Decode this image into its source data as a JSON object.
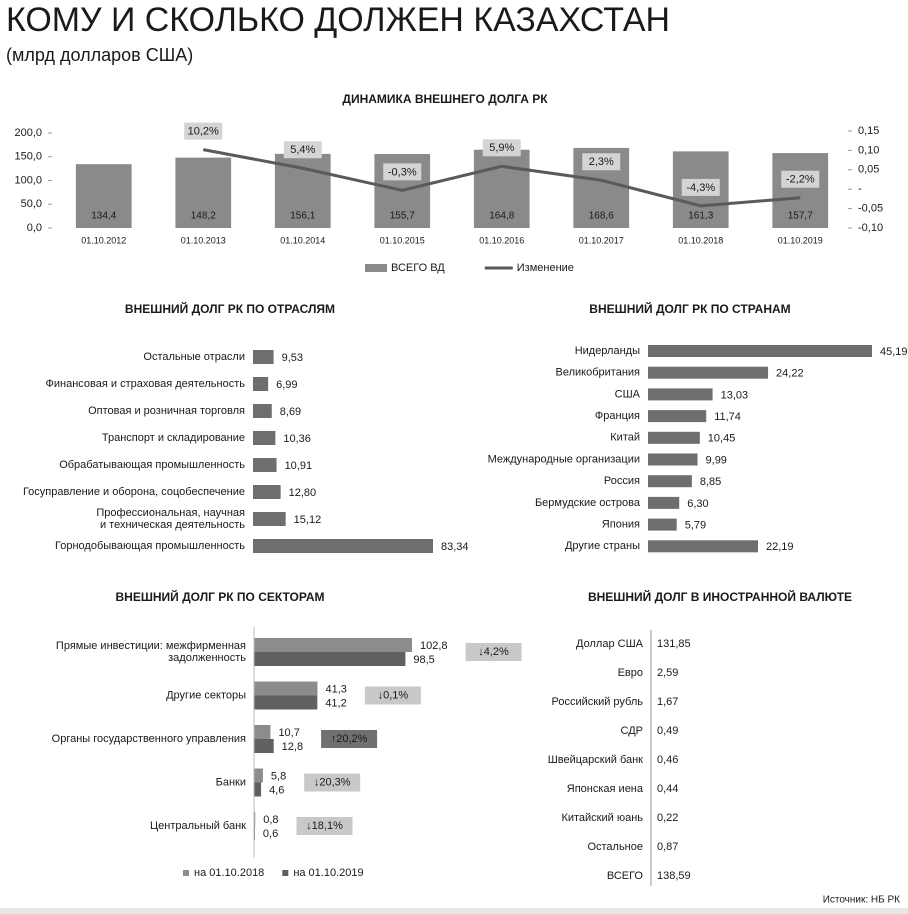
{
  "header": {
    "title": "КОМУ И СКОЛЬКО ДОЛЖЕН КАЗАХСТАН",
    "subtitle": "(млрд долларов США)"
  },
  "source": "Источник: НБ РК",
  "chart_data": [
    {
      "type": "bar",
      "title": "ДИНАМИКА ВНЕШНЕГО ДОЛГА РК",
      "categories": [
        "01.10.2012",
        "01.10.2013",
        "01.10.2014",
        "01.10.2015",
        "01.10.2016",
        "01.10.2017",
        "01.10.2018",
        "01.10.2019"
      ],
      "series": [
        {
          "name": "ВСЕГО ВД",
          "color": "#8a8a8a",
          "values": [
            134.4,
            148.2,
            156.1,
            155.7,
            164.8,
            168.6,
            161.3,
            157.7
          ],
          "value_labels": [
            "134,4",
            "148,2",
            "156,1",
            "155,7",
            "164,8",
            "168,6",
            "161,3",
            "157,7"
          ]
        },
        {
          "name": "Изменение",
          "type": "line",
          "axis": "y2",
          "color": "#5a5a5a",
          "values": [
            null,
            0.102,
            0.054,
            -0.003,
            0.059,
            0.023,
            -0.043,
            -0.022
          ],
          "value_labels": [
            null,
            "10,2%",
            "5,4%",
            "-0,3%",
            "5,9%",
            "2,3%",
            "-4,3%",
            "-2,2%"
          ]
        }
      ],
      "ylim": [
        0,
        200
      ],
      "yticks": [
        {
          "value": 0,
          "label": "0,0"
        },
        {
          "value": 50,
          "label": "50,0"
        },
        {
          "value": 100,
          "label": "100,0"
        },
        {
          "value": 150,
          "label": "150,0"
        },
        {
          "value": 200,
          "label": "200,0"
        }
      ],
      "y2lim": [
        -0.1,
        0.15
      ],
      "y2ticks": [
        {
          "value": -0.1,
          "label": "-0,10"
        },
        {
          "value": -0.05,
          "label": "-0,05"
        },
        {
          "value": 0,
          "label": "-"
        },
        {
          "value": 0.05,
          "label": "0,05"
        },
        {
          "value": 0.1,
          "label": "0,10"
        },
        {
          "value": 0.15,
          "label": "0,15"
        }
      ],
      "legend": "bottom"
    },
    {
      "type": "hbar",
      "title": "ВНЕШНИЙ ДОЛГ РК ПО ОТРАСЛЯМ",
      "color": "#6e6e6e",
      "categories": [
        "Остальные отрасли",
        "Финансовая и страховая деятельность",
        "Оптовая и розничная торговля",
        "Транспорт и складирование",
        "Обрабатывающая промышленность",
        "Госуправление и оборона, соцобеспечение",
        "Профессиональная, научная\nи техническая деятельность",
        "Горнодобывающая промышленность"
      ],
      "values": [
        9.53,
        6.99,
        8.69,
        10.36,
        10.91,
        12.8,
        15.12,
        83.34
      ],
      "value_labels": [
        "9,53",
        "6,99",
        "8,69",
        "10,36",
        "10,91",
        "12,80",
        "15,12",
        "83,34"
      ]
    },
    {
      "type": "hbar",
      "title": "ВНЕШНИЙ ДОЛГ РК ПО СТРАНАМ",
      "color": "#6e6e6e",
      "categories": [
        "Нидерланды",
        "Великобритания",
        "США",
        "Франция",
        "Китай",
        "Международные организации",
        "Россия",
        "Бермудские острова",
        "Япония",
        "Другие страны"
      ],
      "values": [
        45.19,
        24.22,
        13.03,
        11.74,
        10.45,
        9.99,
        8.85,
        6.3,
        5.79,
        22.19
      ],
      "value_labels": [
        "45,19",
        "24,22",
        "13,03",
        "11,74",
        "10,45",
        "9,99",
        "8,85",
        "6,30",
        "5,79",
        "22,19"
      ]
    },
    {
      "type": "hbar",
      "title": "ВНЕШНИЙ ДОЛГ РК ПО СЕКТОРАМ",
      "categories": [
        "Прямые инвестиции: межфирменная\nзадолженность",
        "Другие секторы",
        "Органы государственного управления",
        "Банки",
        "Центральный банк"
      ],
      "series": [
        {
          "name": "на 01.10.2018",
          "color": "#8c8c8c",
          "values": [
            102.8,
            41.3,
            10.7,
            5.8,
            0.8
          ],
          "value_labels": [
            "102,8",
            "41,3",
            "10,7",
            "5,8",
            "0,8"
          ]
        },
        {
          "name": "на 01.10.2019",
          "color": "#606060",
          "values": [
            98.5,
            41.2,
            12.8,
            4.6,
            0.6
          ],
          "value_labels": [
            "98,5",
            "41,2",
            "12,8",
            "4,6",
            "0,6"
          ]
        }
      ],
      "changes": [
        "↓4,2%",
        "↓0,1%",
        "↑20,2%",
        "↓20,3%",
        "↓18,1%"
      ],
      "change_colors": [
        "#c8c8c8",
        "#c8c8c8",
        "#707070",
        "#c8c8c8",
        "#c8c8c8"
      ],
      "legend": "bottom"
    },
    {
      "type": "table",
      "title": "ВНЕШНИЙ ДОЛГ В ИНОСТРАННОЙ ВАЛЮТЕ",
      "rows": [
        [
          "Доллар США",
          "131,85"
        ],
        [
          "Евро",
          "2,59"
        ],
        [
          "Российский рубль",
          "1,67"
        ],
        [
          "СДР",
          "0,49"
        ],
        [
          "Швейцарский банк",
          "0,46"
        ],
        [
          "Японская иена",
          "0,44"
        ],
        [
          "Китайский юань",
          "0,22"
        ],
        [
          "Остальное",
          "0,87"
        ],
        [
          "ВСЕГО",
          "138,59"
        ]
      ]
    }
  ]
}
